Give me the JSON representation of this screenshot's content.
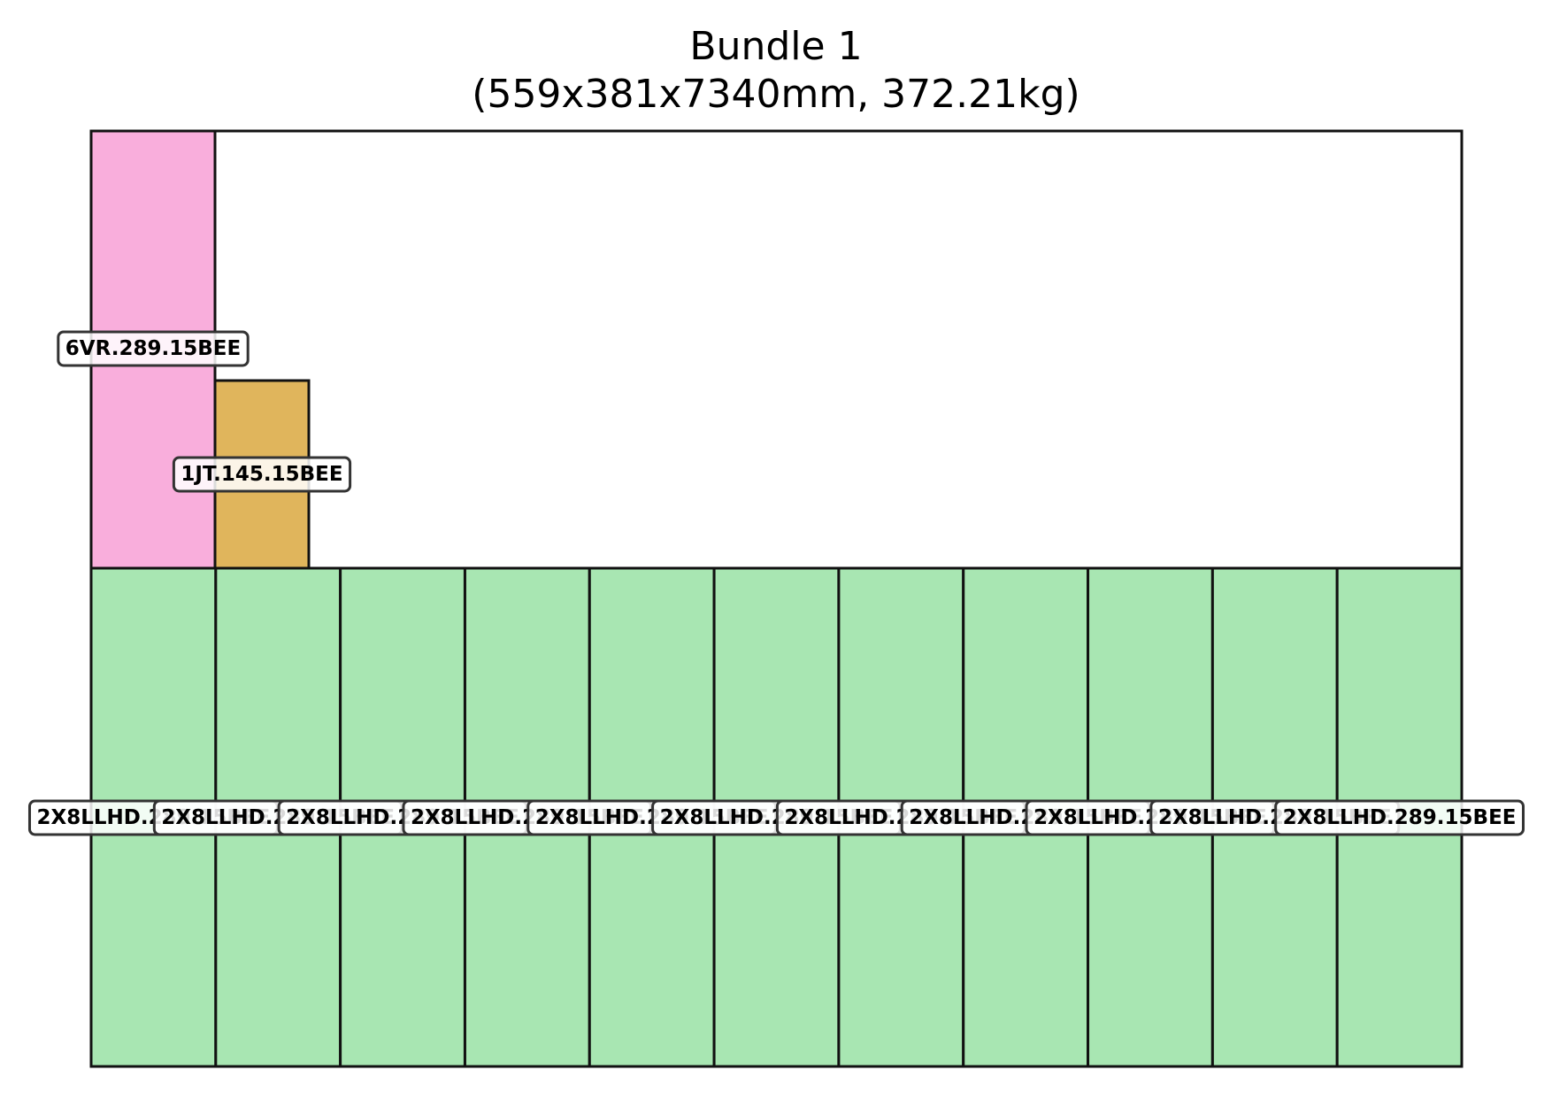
{
  "diagram": {
    "title_line1": "Bundle 1",
    "title_line2": "(559x381x7340mm, 372.21kg)",
    "colors": {
      "pink": "#f9aedc",
      "gold": "#e0b55c",
      "green": "#a8e6b2",
      "outline": "#111111"
    },
    "pieces": [
      {
        "label": "6VR.289.15BEE",
        "color": "pink"
      },
      {
        "label": "1JT.145.15BEE",
        "color": "gold"
      },
      {
        "label": "2X8LLHD.289.15BEE",
        "color": "green"
      },
      {
        "label": "2X8LLHD.289.15BEE",
        "color": "green"
      },
      {
        "label": "2X8LLHD.289.15BEE",
        "color": "green"
      },
      {
        "label": "2X8LLHD.289.15BEE",
        "color": "green"
      },
      {
        "label": "2X8LLHD.289.15BEE",
        "color": "green"
      },
      {
        "label": "2X8LLHD.289.15BEE",
        "color": "green"
      },
      {
        "label": "2X8LLHD.289.15BEE",
        "color": "green"
      },
      {
        "label": "2X8LLHD.289.15BEE",
        "color": "green"
      },
      {
        "label": "2X8LLHD.289.15BEE",
        "color": "green"
      },
      {
        "label": "2X8LLHD.289.15BEE",
        "color": "green"
      },
      {
        "label": "2X8LLHD.289.15BEE",
        "color": "green"
      }
    ]
  }
}
